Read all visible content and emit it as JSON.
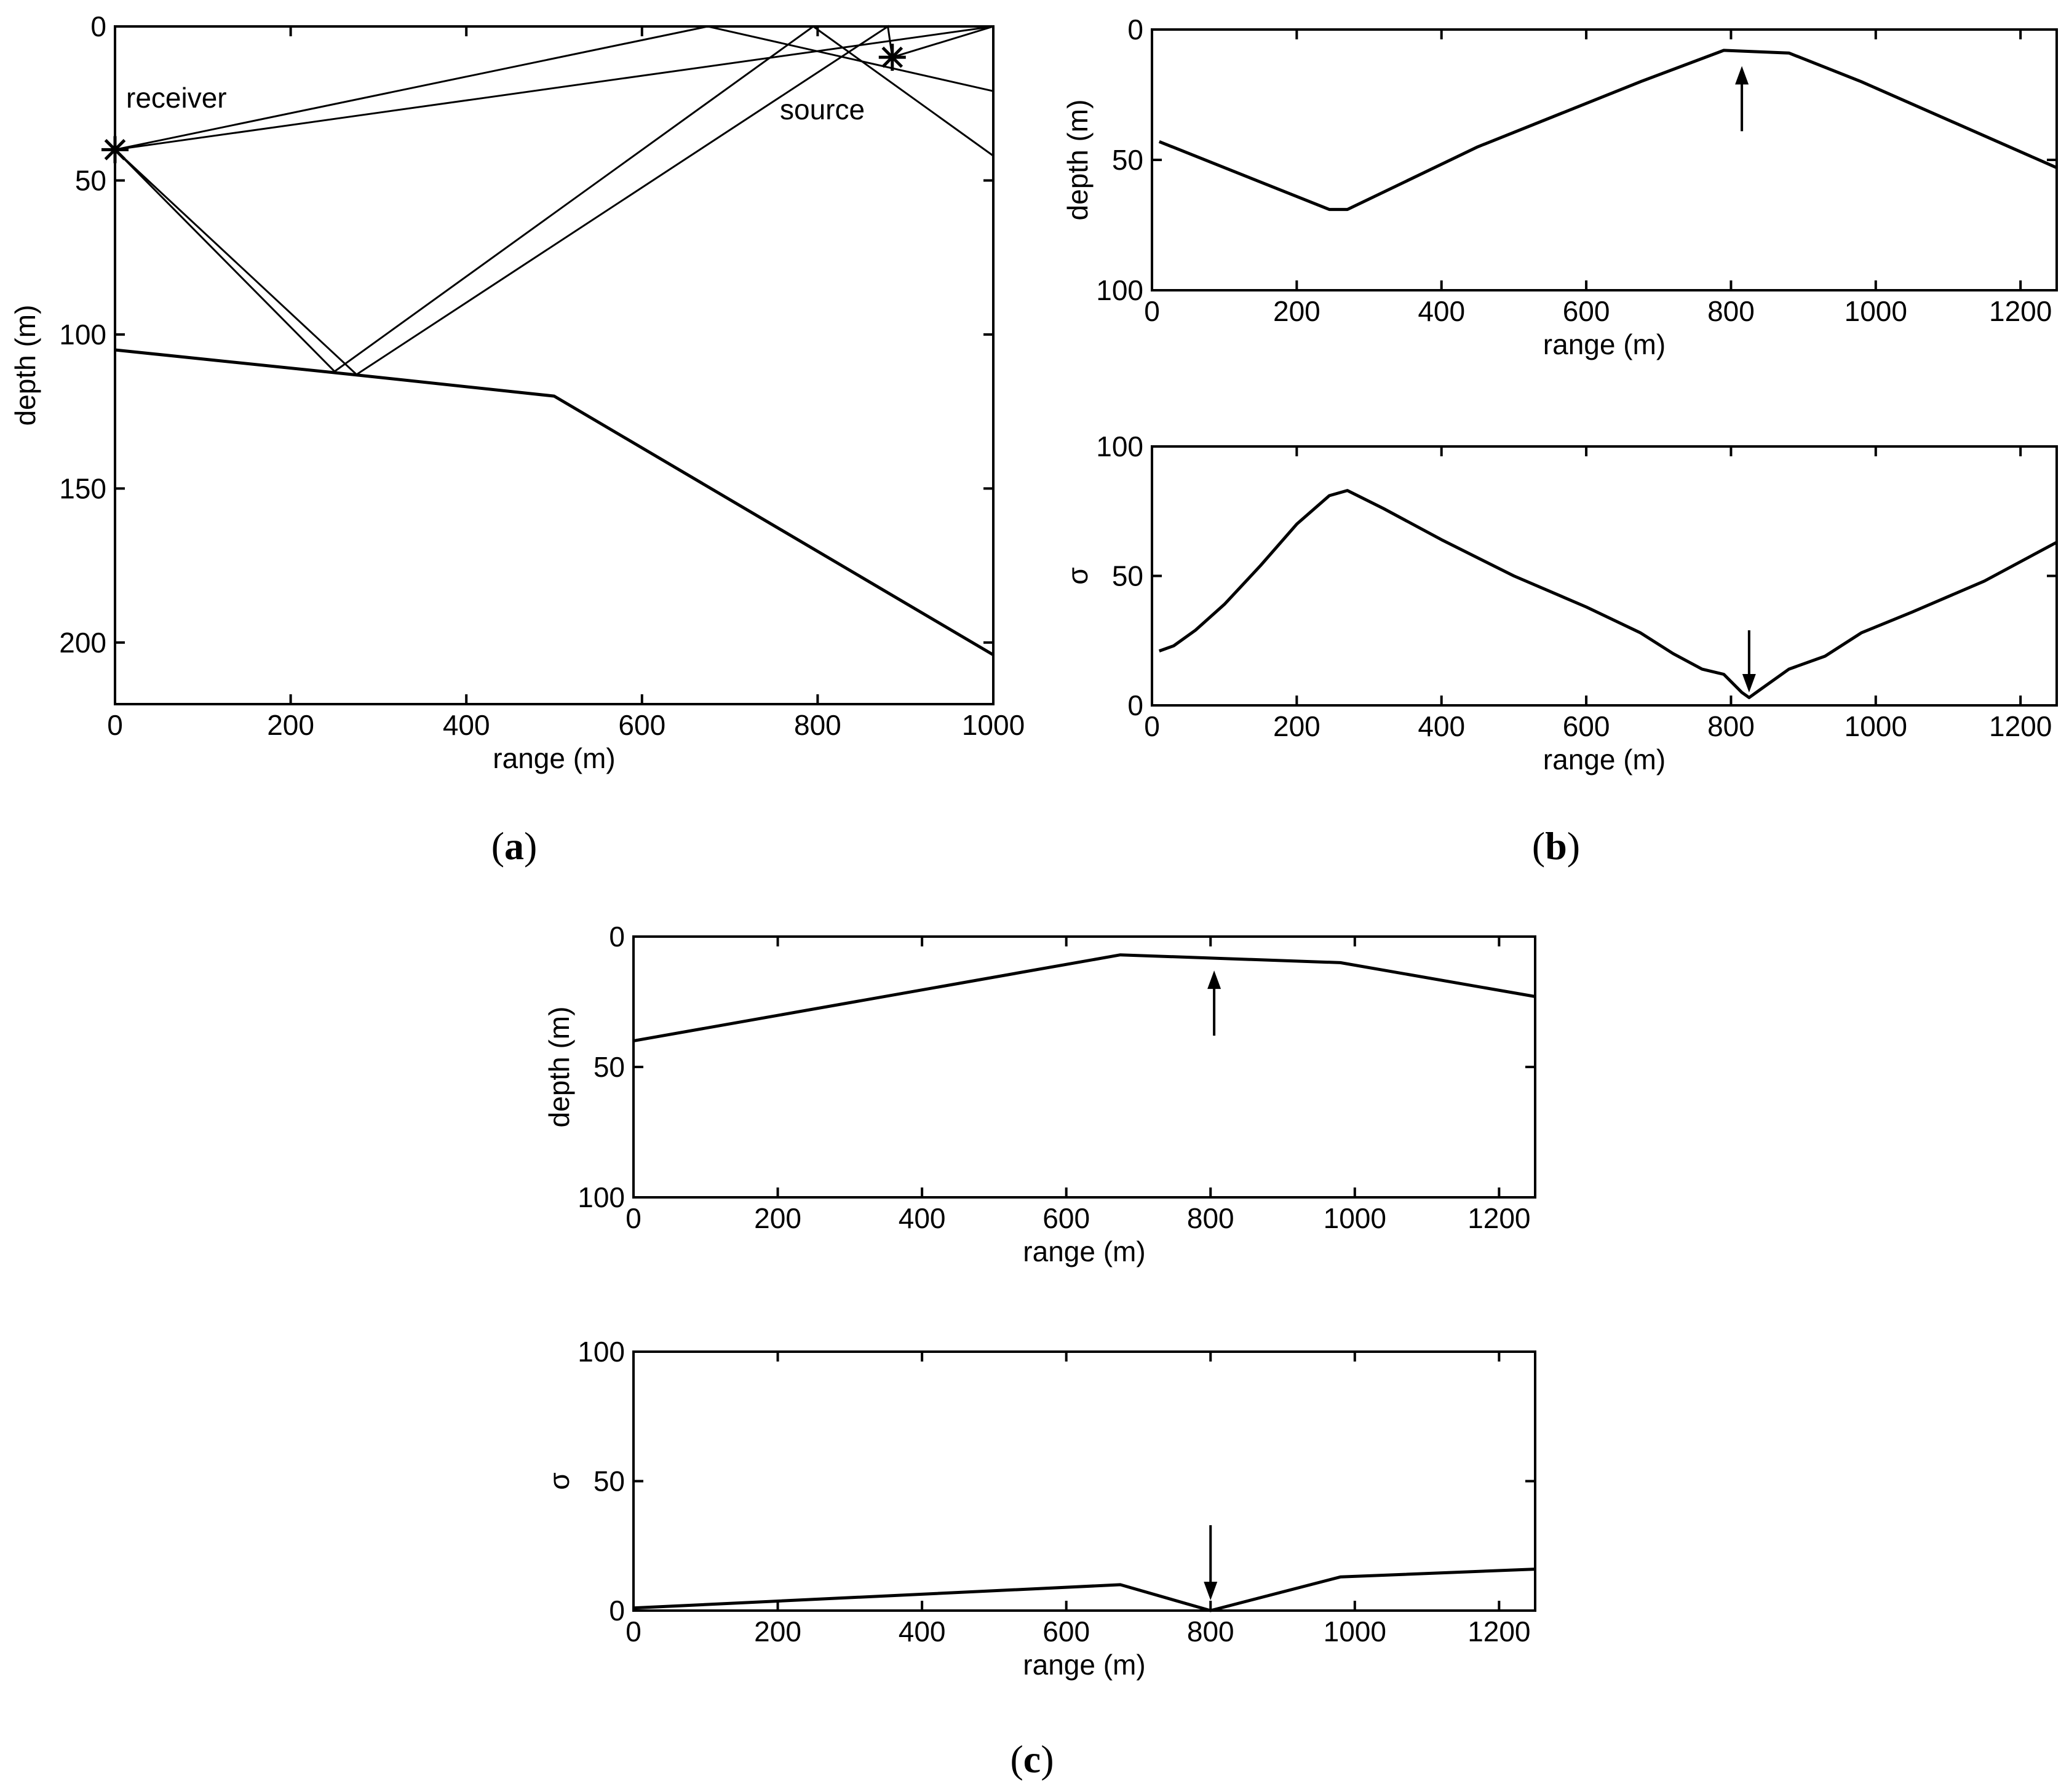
{
  "chart_data": [
    {
      "id": "a",
      "type": "line",
      "panel_label": "a",
      "xlabel": "range (m)",
      "ylabel": "depth (m)",
      "xlim": [
        0,
        1000
      ],
      "ylim": [
        220,
        0
      ],
      "y_inverted": true,
      "xticks": [
        0,
        200,
        400,
        600,
        800,
        1000
      ],
      "yticks": [
        0,
        50,
        100,
        150,
        200
      ],
      "seabed": {
        "x": [
          0,
          270,
          500,
          1000
        ],
        "y": [
          105,
          113,
          120,
          204
        ]
      },
      "rays": [
        {
          "x": [
            0,
            675,
            1000
          ],
          "y": [
            40,
            0,
            21
          ]
        },
        {
          "x": [
            0,
            1000,
            885
          ],
          "y": [
            40,
            0,
            10
          ]
        },
        {
          "x": [
            0,
            250,
            795,
            1000
          ],
          "y": [
            40,
            112,
            0,
            42
          ]
        },
        {
          "x": [
            0,
            275,
            880,
            885
          ],
          "y": [
            40,
            113,
            0,
            10
          ]
        }
      ],
      "receiver": {
        "label": "receiver",
        "x": 0,
        "y": 40
      },
      "source": {
        "label": "source",
        "x": 885,
        "y": 10
      }
    },
    {
      "id": "b_depth",
      "type": "line",
      "panel_label": "b",
      "xlabel": "range (m)",
      "ylabel": "depth (m)",
      "xlim": [
        0,
        1250
      ],
      "ylim": [
        100,
        0
      ],
      "y_inverted": true,
      "xticks": [
        0,
        200,
        400,
        600,
        800,
        1000,
        1200
      ],
      "yticks": [
        0,
        50,
        100
      ],
      "x": [
        10,
        245,
        270,
        450,
        675,
        790,
        880,
        980,
        1250
      ],
      "y": [
        43,
        69,
        69,
        45,
        20,
        8,
        9,
        20,
        53
      ],
      "arrow": {
        "x": 815,
        "y_from": 39,
        "y_to": 14,
        "direction": "up"
      }
    },
    {
      "id": "b_sigma",
      "type": "line",
      "panel_label": "b",
      "xlabel": "range (m)",
      "ylabel": "σ",
      "xlim": [
        0,
        1250
      ],
      "ylim": [
        0,
        100
      ],
      "xticks": [
        0,
        200,
        400,
        600,
        800,
        1000,
        1200
      ],
      "yticks": [
        0,
        50,
        100
      ],
      "x": [
        10,
        30,
        60,
        100,
        150,
        200,
        245,
        270,
        320,
        400,
        500,
        600,
        675,
        720,
        760,
        790,
        815,
        825,
        840,
        880,
        930,
        980,
        1050,
        1150,
        1250
      ],
      "y": [
        21,
        23,
        29,
        39,
        54,
        70,
        81,
        83,
        76,
        64,
        50,
        38,
        28,
        20,
        14,
        12,
        5,
        3,
        6,
        14,
        19,
        28,
        36,
        48,
        63
      ],
      "arrow": {
        "x": 825,
        "y_from": 29,
        "y_to": 5,
        "direction": "down"
      }
    },
    {
      "id": "c_depth",
      "type": "line",
      "panel_label": "c",
      "xlabel": "range (m)",
      "ylabel": "depth (m)",
      "xlim": [
        0,
        1250
      ],
      "ylim": [
        100,
        0
      ],
      "y_inverted": true,
      "xticks": [
        0,
        200,
        400,
        600,
        800,
        1000,
        1200
      ],
      "yticks": [
        0,
        50,
        100
      ],
      "x": [
        0,
        675,
        980,
        1250
      ],
      "y": [
        40,
        7,
        10,
        23
      ],
      "arrow": {
        "x": 805,
        "y_from": 38,
        "y_to": 13,
        "direction": "up"
      }
    },
    {
      "id": "c_sigma",
      "type": "line",
      "panel_label": "c",
      "xlabel": "range (m)",
      "ylabel": "σ",
      "xlim": [
        0,
        1250
      ],
      "ylim": [
        0,
        100
      ],
      "xticks": [
        0,
        200,
        400,
        600,
        800,
        1000,
        1200
      ],
      "yticks": [
        0,
        50,
        100
      ],
      "x": [
        0,
        675,
        800,
        980,
        1250
      ],
      "y": [
        1,
        10,
        0,
        13,
        16
      ],
      "arrow": {
        "x": 800,
        "y_from": 33,
        "y_to": 4,
        "direction": "down"
      }
    }
  ]
}
